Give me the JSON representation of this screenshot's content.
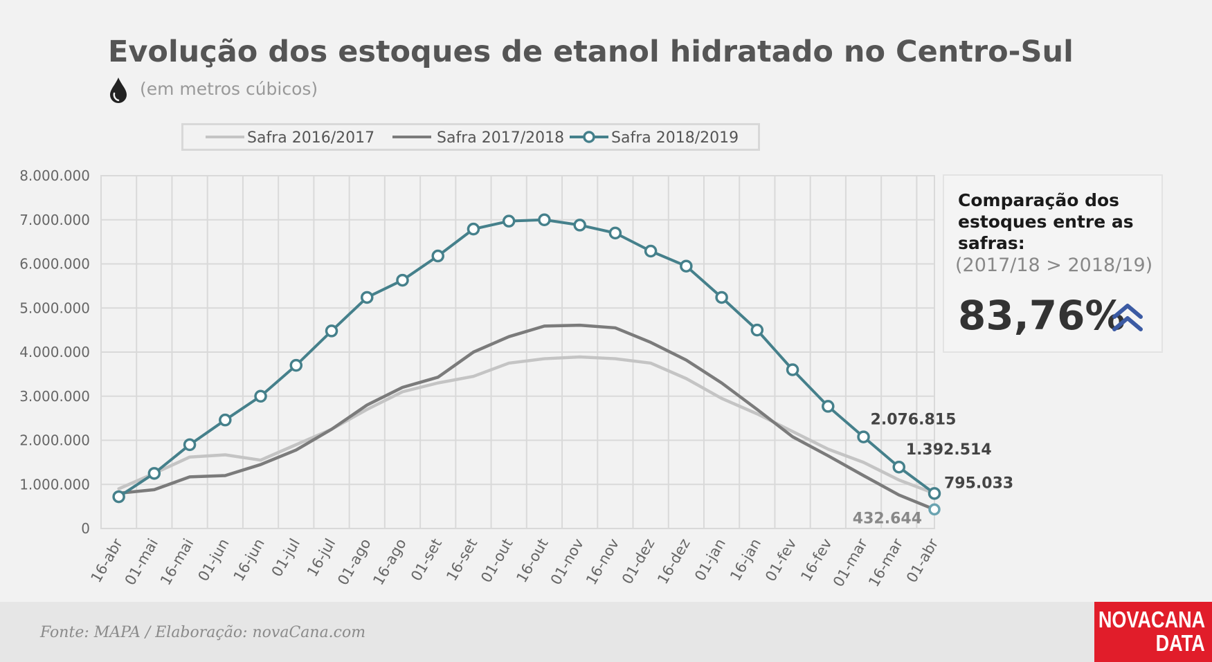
{
  "header": {
    "title": "Evolução dos estoques de etanol hidratado no Centro-Sul",
    "subtitle": "(em metros cúbicos)",
    "subtitle_icon": "drop-icon"
  },
  "comparison": {
    "title": "Comparação dos estoques entre as safras:",
    "subtitle": "(2017/18 > 2018/19)",
    "value": "83,76%",
    "icon": "double-chevron-up-icon",
    "icon_color": "#3b5aa3"
  },
  "footer": {
    "source": "Fonte: MAPA  / Elaboração: novaCana.com",
    "logo_line1": "NOVACANA",
    "logo_line2": "DATA",
    "logo_color": "#e11d2a"
  },
  "chart_data": {
    "type": "line",
    "categories": [
      "16-abr",
      "01-mai",
      "16-mai",
      "01-jun",
      "16-jun",
      "01-jul",
      "16-jul",
      "01-ago",
      "16-ago",
      "01-set",
      "16-set",
      "01-out",
      "16-out",
      "01-nov",
      "16-nov",
      "01-dez",
      "16-dez",
      "01-jan",
      "16-jan",
      "01-fev",
      "16-fev",
      "01-mar",
      "16-mar",
      "01-abr"
    ],
    "y_ticks": [
      "8.000.000",
      "7.000.000",
      "6.000.000",
      "5.000.000",
      "4.000.000",
      "3.000.000",
      "2.000.000",
      "1.000.000",
      "0"
    ],
    "ylim": [
      0,
      8000000
    ],
    "grid": true,
    "legend_position": "top",
    "series": [
      {
        "name": "Safra 2016/2017",
        "color": "#c4c4c4",
        "markers": false,
        "values": [
          900000,
          1250000,
          1620000,
          1670000,
          1550000,
          1900000,
          2250000,
          2700000,
          3100000,
          3300000,
          3450000,
          3750000,
          3850000,
          3890000,
          3850000,
          3750000,
          3400000,
          2950000,
          2600000,
          2200000,
          1800000,
          1500000,
          1100000,
          795033
        ]
      },
      {
        "name": "Safra 2017/2018",
        "color": "#7b7b7b",
        "markers": false,
        "values": [
          800000,
          880000,
          1170000,
          1200000,
          1450000,
          1780000,
          2250000,
          2800000,
          3200000,
          3430000,
          4000000,
          4350000,
          4590000,
          4610000,
          4550000,
          4220000,
          3820000,
          3300000,
          2700000,
          2080000,
          1650000,
          1200000,
          760000,
          432644
        ]
      },
      {
        "name": "Safra 2018/2019",
        "color": "#45808b",
        "markers": true,
        "values": [
          720000,
          1250000,
          1900000,
          2460000,
          3000000,
          3700000,
          4480000,
          5240000,
          5630000,
          6180000,
          6790000,
          6970000,
          7000000,
          6880000,
          6700000,
          6290000,
          5950000,
          5240000,
          4500000,
          3600000,
          2770000,
          2076815,
          1392514,
          795033
        ]
      }
    ],
    "annotations": [
      {
        "text": "2.076.815",
        "category": "01-mar",
        "series": "Safra 2018/2019"
      },
      {
        "text": "1.392.514",
        "category": "16-mar",
        "series": "Safra 2018/2019"
      },
      {
        "text": "795.033",
        "category": "01-abr",
        "series": "Safra 2018/2019"
      },
      {
        "text": "432.644",
        "category": "01-abr",
        "series": "Safra 2017/2018"
      }
    ]
  }
}
